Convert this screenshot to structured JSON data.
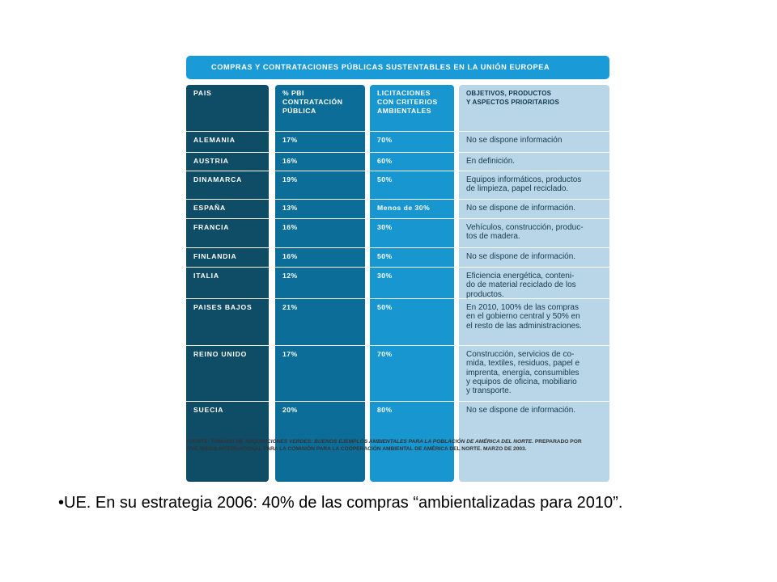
{
  "title": "COMPRAS Y CONTRATACIONES PÚBLICAS SUSTENTABLES EN LA UNIÓN EUROPEA",
  "headers": {
    "pais": [
      "PAIS"
    ],
    "pbi": [
      "% PBI",
      "CONTRATACIÓN",
      "PÚBLICA"
    ],
    "licitaciones": [
      "LICITACIONES",
      "CON CRITERIOS",
      "AMBIENTALES"
    ],
    "objetivos": [
      "OBJETIVOS, PRODUCTOS",
      "Y ASPECTOS PRIORITARIOS"
    ]
  },
  "rows": [
    {
      "pais": "ALEMANIA",
      "pbi": "17%",
      "licitaciones": "70%",
      "objetivos": [
        "No se dispone información"
      ]
    },
    {
      "pais": "AUSTRIA",
      "pbi": "16%",
      "licitaciones": "60%",
      "objetivos": [
        "En definición."
      ]
    },
    {
      "pais": "DINAMARCA",
      "pbi": "19%",
      "licitaciones": "50%",
      "objetivos": [
        "Equipos informáticos, productos",
        "de limpieza, papel reciclado."
      ]
    },
    {
      "pais": "ESPAÑA",
      "pbi": "13%",
      "licitaciones": "Menos de 30%",
      "objetivos": [
        "No se dispone de información."
      ]
    },
    {
      "pais": "FRANCIA",
      "pbi": "16%",
      "licitaciones": "30%",
      "objetivos": [
        "Vehículos, construcción, produc-",
        "tos de madera."
      ]
    },
    {
      "pais": "FINLANDIA",
      "pbi": "16%",
      "licitaciones": "50%",
      "objetivos": [
        "No se dispone de información."
      ]
    },
    {
      "pais": "ITALIA",
      "pbi": "12%",
      "licitaciones": "30%",
      "objetivos": [
        "Eficiencia energética, conteni-",
        "do de material reciclado de los",
        "productos."
      ]
    },
    {
      "pais": "PAISES BAJOS",
      "pbi": "21%",
      "licitaciones": "50%",
      "objetivos": [
        "En 2010, 100% de las compras",
        "en el gobierno central y 50% en",
        "el resto de las administraciones."
      ]
    },
    {
      "pais": "REINO UNIDO",
      "pbi": "17%",
      "licitaciones": "70%",
      "objetivos": [
        "Construcción, servicios de co-",
        "mida, textiles, residuos, papel e",
        "imprenta, energía, consumibles",
        "y equipos de oficina, mobiliario",
        "y transporte."
      ]
    },
    {
      "pais": "SUECIA",
      "pbi": "20%",
      "licitaciones": "80%",
      "objetivos": [
        "No se dispone de información."
      ]
    }
  ],
  "source": {
    "prefix": "FUENTE: TOMADO DE ",
    "title_italic": "ADQUISICIONES VERDES: BUENOS EJEMPLOS AMBIENTALES PARA LA POBLACIÓN DE AMÉRICA DEL NORTE",
    "suffix": ". PREPARADO POR",
    "line2": "FIVE WINDS INTERNATIONAL PARA LA COMISIÓN PARA LA COOPERACIÓN AMBIENTAL DE AMÉRICA DEL NORTE. MARZO DE 2003."
  },
  "caption": "•UE. En su estrategia 2006: 40% de las compras “ambientalizadas para 2010”.",
  "colors": {
    "title_bar": "#1a9ad6",
    "col_pais": "#0f4c66",
    "col_pbi": "#0c6e98",
    "col_licitaciones": "#1796cf",
    "col_objetivos": "#b8d6e8"
  }
}
